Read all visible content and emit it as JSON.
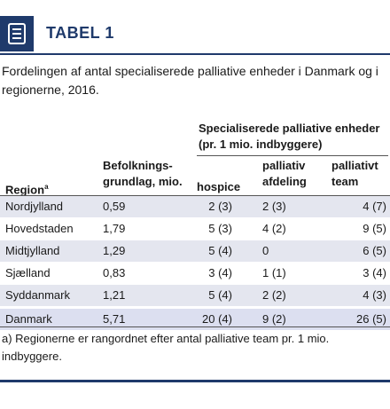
{
  "header": {
    "title": "TABEL 1",
    "icon": "document-list-icon",
    "accent_color": "#1f3a6b"
  },
  "caption": "Fordelingen af antal specialiserede palliative enheder i Danmark og i regionerne, 2016.",
  "table": {
    "group_header_line1": "Specialiserede palliative enheder",
    "group_header_line2": "(pr. 1 mio. indbyggere)",
    "columns": {
      "region": "Region",
      "region_sup": "a",
      "population_line1": "Befolknings-",
      "population_line2": "grundlag, mio.",
      "hospice": "hospice",
      "afdeling_line1": "palliativ",
      "afdeling_line2": "afdeling",
      "team_line1": "palliativt",
      "team_line2": "team"
    },
    "rows": [
      {
        "region": "Nordjylland",
        "population": "0,59",
        "hospice": "2 (3)",
        "afdeling": "2 (3)",
        "team": "4 (7)"
      },
      {
        "region": "Hovedstaden",
        "population": "1,79",
        "hospice": "5 (3)",
        "afdeling": "4 (2)",
        "team": "9 (5)"
      },
      {
        "region": "Midtjylland",
        "population": "1,29",
        "hospice": "5 (4)",
        "afdeling": "0",
        "team": "6 (5)"
      },
      {
        "region": "Sjælland",
        "population": "0,83",
        "hospice": "3 (4)",
        "afdeling": "1 (1)",
        "team": "3 (4)"
      },
      {
        "region": "Syddanmark",
        "population": "1,21",
        "hospice": "5 (4)",
        "afdeling": "2 (2)",
        "team": "4 (3)"
      },
      {
        "region": "Danmark",
        "population": "5,71",
        "hospice": "20 (4)",
        "afdeling": "9 (2)",
        "team": "26 (5)"
      }
    ]
  },
  "footnote": "a) Regionerne er rangordnet efter antal palliative team pr. 1 mio. indbyggere."
}
